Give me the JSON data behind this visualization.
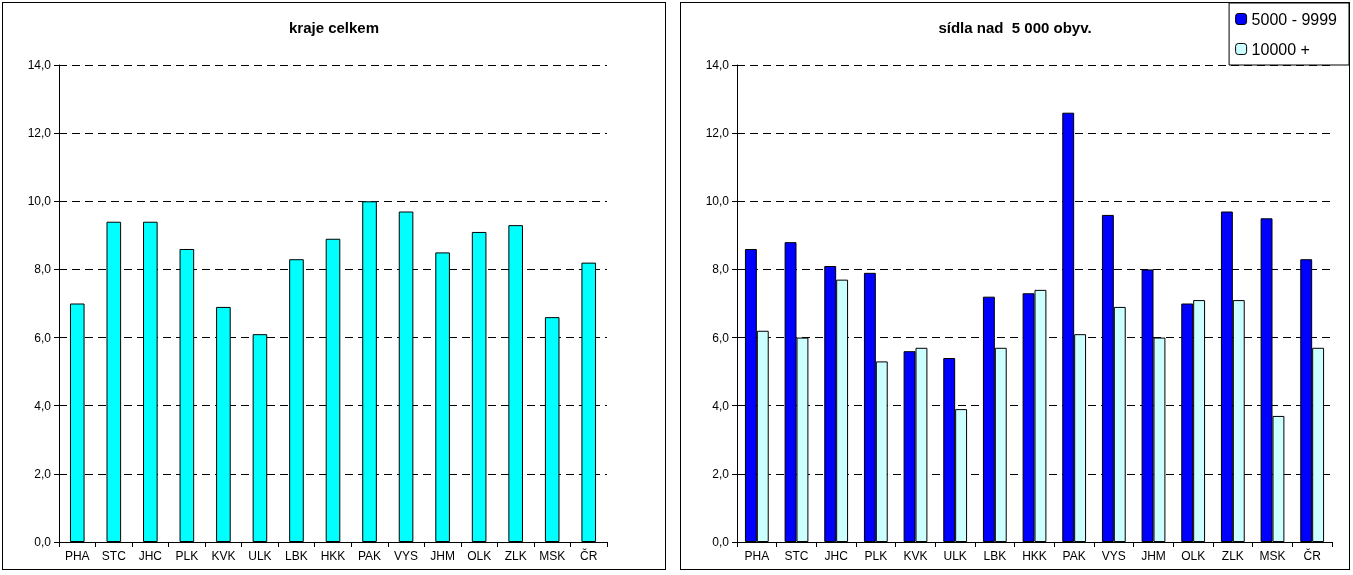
{
  "chart_data": [
    {
      "type": "bar",
      "title": "kraje celkem",
      "categories": [
        "PHA",
        "STC",
        "JHC",
        "PLK",
        "KVK",
        "ULK",
        "LBK",
        "HKK",
        "PAK",
        "VYS",
        "JHM",
        "OLK",
        "ZLK",
        "MSK",
        "ČR"
      ],
      "values": [
        7.0,
        9.4,
        9.4,
        8.6,
        6.9,
        6.1,
        8.3,
        8.9,
        10.0,
        9.7,
        8.5,
        9.1,
        9.3,
        6.6,
        8.2
      ],
      "color": "#00ffff",
      "ylim": [
        0,
        14
      ],
      "yticks": [
        {
          "value": 0,
          "label": "0,0"
        },
        {
          "value": 2,
          "label": "2,0"
        },
        {
          "value": 4,
          "label": "4,0"
        },
        {
          "value": 6,
          "label": "6,0"
        },
        {
          "value": 8,
          "label": "8,0"
        },
        {
          "value": 10,
          "label": "10,0"
        },
        {
          "value": 12,
          "label": "12,0"
        },
        {
          "value": 14,
          "label": "14,0"
        }
      ],
      "grid": "y",
      "legend": false
    },
    {
      "type": "bar",
      "title": "sídla nad  5 000 obyv.",
      "categories": [
        "PHA",
        "STC",
        "JHC",
        "PLK",
        "KVK",
        "ULK",
        "LBK",
        "HKK",
        "PAK",
        "VYS",
        "JHM",
        "OLK",
        "ZLK",
        "MSK",
        "ČR"
      ],
      "series": [
        {
          "name": "5000 - 9999",
          "color": "#0000ff",
          "values": [
            8.6,
            8.8,
            8.1,
            7.9,
            5.6,
            5.4,
            7.2,
            7.3,
            12.6,
            9.6,
            8.0,
            7.0,
            9.7,
            9.5,
            8.3
          ]
        },
        {
          "name": "10000 +",
          "color": "#ccffff",
          "values": [
            6.2,
            6.0,
            7.7,
            5.3,
            5.7,
            3.9,
            5.7,
            7.4,
            6.1,
            6.9,
            6.0,
            7.1,
            7.1,
            3.7,
            5.7
          ]
        }
      ],
      "ylim": [
        0,
        14
      ],
      "yticks": [
        {
          "value": 0,
          "label": "0,0"
        },
        {
          "value": 2,
          "label": "2,0"
        },
        {
          "value": 4,
          "label": "4,0"
        },
        {
          "value": 6,
          "label": "6,0"
        },
        {
          "value": 8,
          "label": "8,0"
        },
        {
          "value": 10,
          "label": "10,0"
        },
        {
          "value": 12,
          "label": "12,0"
        },
        {
          "value": 14,
          "label": "14,0"
        }
      ],
      "grid": "y",
      "legend": "top right"
    }
  ]
}
